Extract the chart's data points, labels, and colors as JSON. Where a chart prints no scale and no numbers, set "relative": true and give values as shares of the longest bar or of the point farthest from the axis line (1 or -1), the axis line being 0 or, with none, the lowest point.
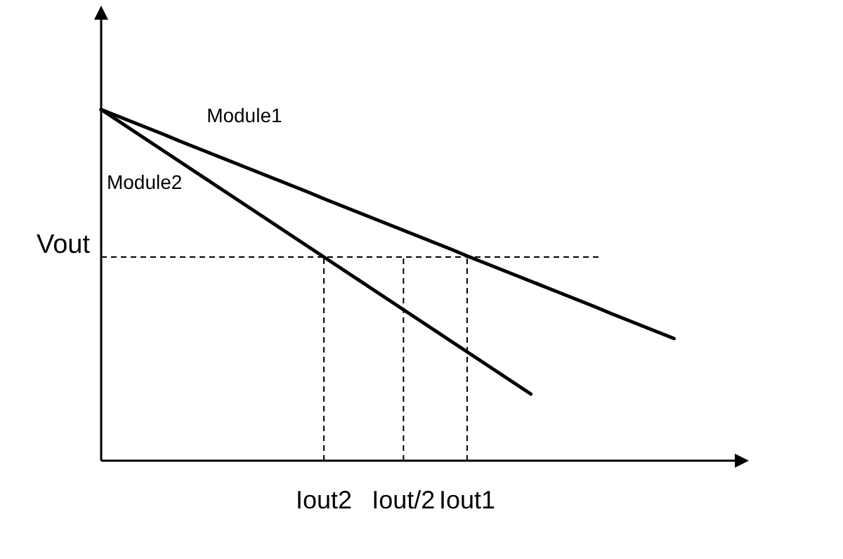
{
  "chart_data": {
    "type": "line",
    "relative": true,
    "categories": [
      null,
      null,
      null,
      null,
      null,
      null,
      null,
      null,
      null,
      null,
      null,
      null,
      null,
      null,
      "Iout2",
      null,
      null,
      null,
      null,
      "Iout/2",
      null,
      null,
      null,
      "Iout1",
      null,
      null,
      null,
      null,
      null,
      null,
      null,
      null,
      null,
      null,
      null,
      null,
      null,
      null,
      null,
      null,
      null
    ],
    "series": [
      {
        "name": "Module1",
        "color": "#000000",
        "values": [
          1,
          0.982,
          0.964,
          0.946,
          0.928,
          0.909,
          0.891,
          0.873,
          0.855,
          0.837,
          0.819,
          0.801,
          0.783,
          0.765,
          0.746,
          0.728,
          0.71,
          0.692,
          0.674,
          0.656,
          0.638,
          0.62,
          0.602,
          0.583,
          0.565,
          0.547,
          0.529,
          0.511,
          0.493,
          0.475,
          0.457,
          0.439,
          0.42,
          0.402,
          0.384,
          0.366,
          0.348,
          null,
          null,
          null,
          null
        ]
      },
      {
        "name": "Module2",
        "color": "#000000",
        "values": [
          1,
          0.97,
          0.94,
          0.91,
          0.88,
          0.85,
          0.82,
          0.79,
          0.76,
          0.73,
          0.7,
          0.67,
          0.64,
          0.61,
          0.58,
          0.55,
          0.52,
          0.49,
          0.46,
          0.43,
          0.4,
          0.37,
          0.34,
          0.31,
          0.28,
          0.25,
          0.22,
          0.19,
          null,
          null,
          null,
          null,
          null,
          null,
          null,
          null,
          null,
          null,
          null,
          null,
          null
        ]
      }
    ],
    "ref_lines": [
      {
        "axis": "y",
        "value": 0.58,
        "label": "Vout",
        "line_style": "dashed",
        "color": "#000000"
      },
      {
        "axis": "x",
        "value": "Iout2",
        "line_style": "dashed",
        "color": "#000000"
      },
      {
        "axis": "x",
        "value": "Iout/2",
        "line_style": "dashed",
        "color": "#000000"
      },
      {
        "axis": "x",
        "value": "Iout1",
        "line_style": "dashed",
        "color": "#000000"
      }
    ],
    "grid": false,
    "legend": false,
    "marker": "none",
    "line_style": "solid"
  }
}
